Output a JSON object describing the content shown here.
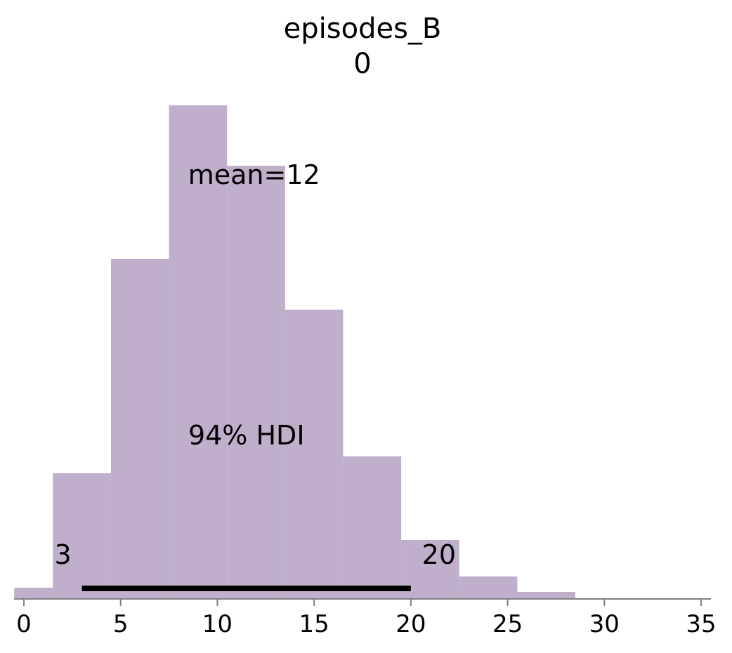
{
  "chart_data": {
    "type": "bar",
    "title": "episodes_B",
    "subtitle": "0",
    "xlabel": "",
    "ylabel": "",
    "xlim": [
      -0.5,
      35.5
    ],
    "xticks": [
      "0",
      "5",
      "10",
      "15",
      "20",
      "25",
      "30",
      "35"
    ],
    "bins": [
      {
        "start": -0.5,
        "end": 1.5,
        "count": 16
      },
      {
        "start": 1.5,
        "end": 4.5,
        "count": 179
      },
      {
        "start": 4.5,
        "end": 7.5,
        "count": 484
      },
      {
        "start": 7.5,
        "end": 10.5,
        "count": 703
      },
      {
        "start": 10.5,
        "end": 13.5,
        "count": 617
      },
      {
        "start": 13.5,
        "end": 16.5,
        "count": 412
      },
      {
        "start": 16.5,
        "end": 19.5,
        "count": 203
      },
      {
        "start": 19.5,
        "end": 22.5,
        "count": 84
      },
      {
        "start": 22.5,
        "end": 25.5,
        "count": 32
      },
      {
        "start": 25.5,
        "end": 28.5,
        "count": 10
      }
    ],
    "mean_label": "mean=12",
    "hdi_label": "94% HDI",
    "hdi_low": 3,
    "hdi_high": 20,
    "hdi_low_label": "3",
    "hdi_high_label": "20",
    "bar_color": "#bfafca",
    "hdi_color": "#000000",
    "axis_color": "#808080",
    "grid": false,
    "legend": "none"
  }
}
